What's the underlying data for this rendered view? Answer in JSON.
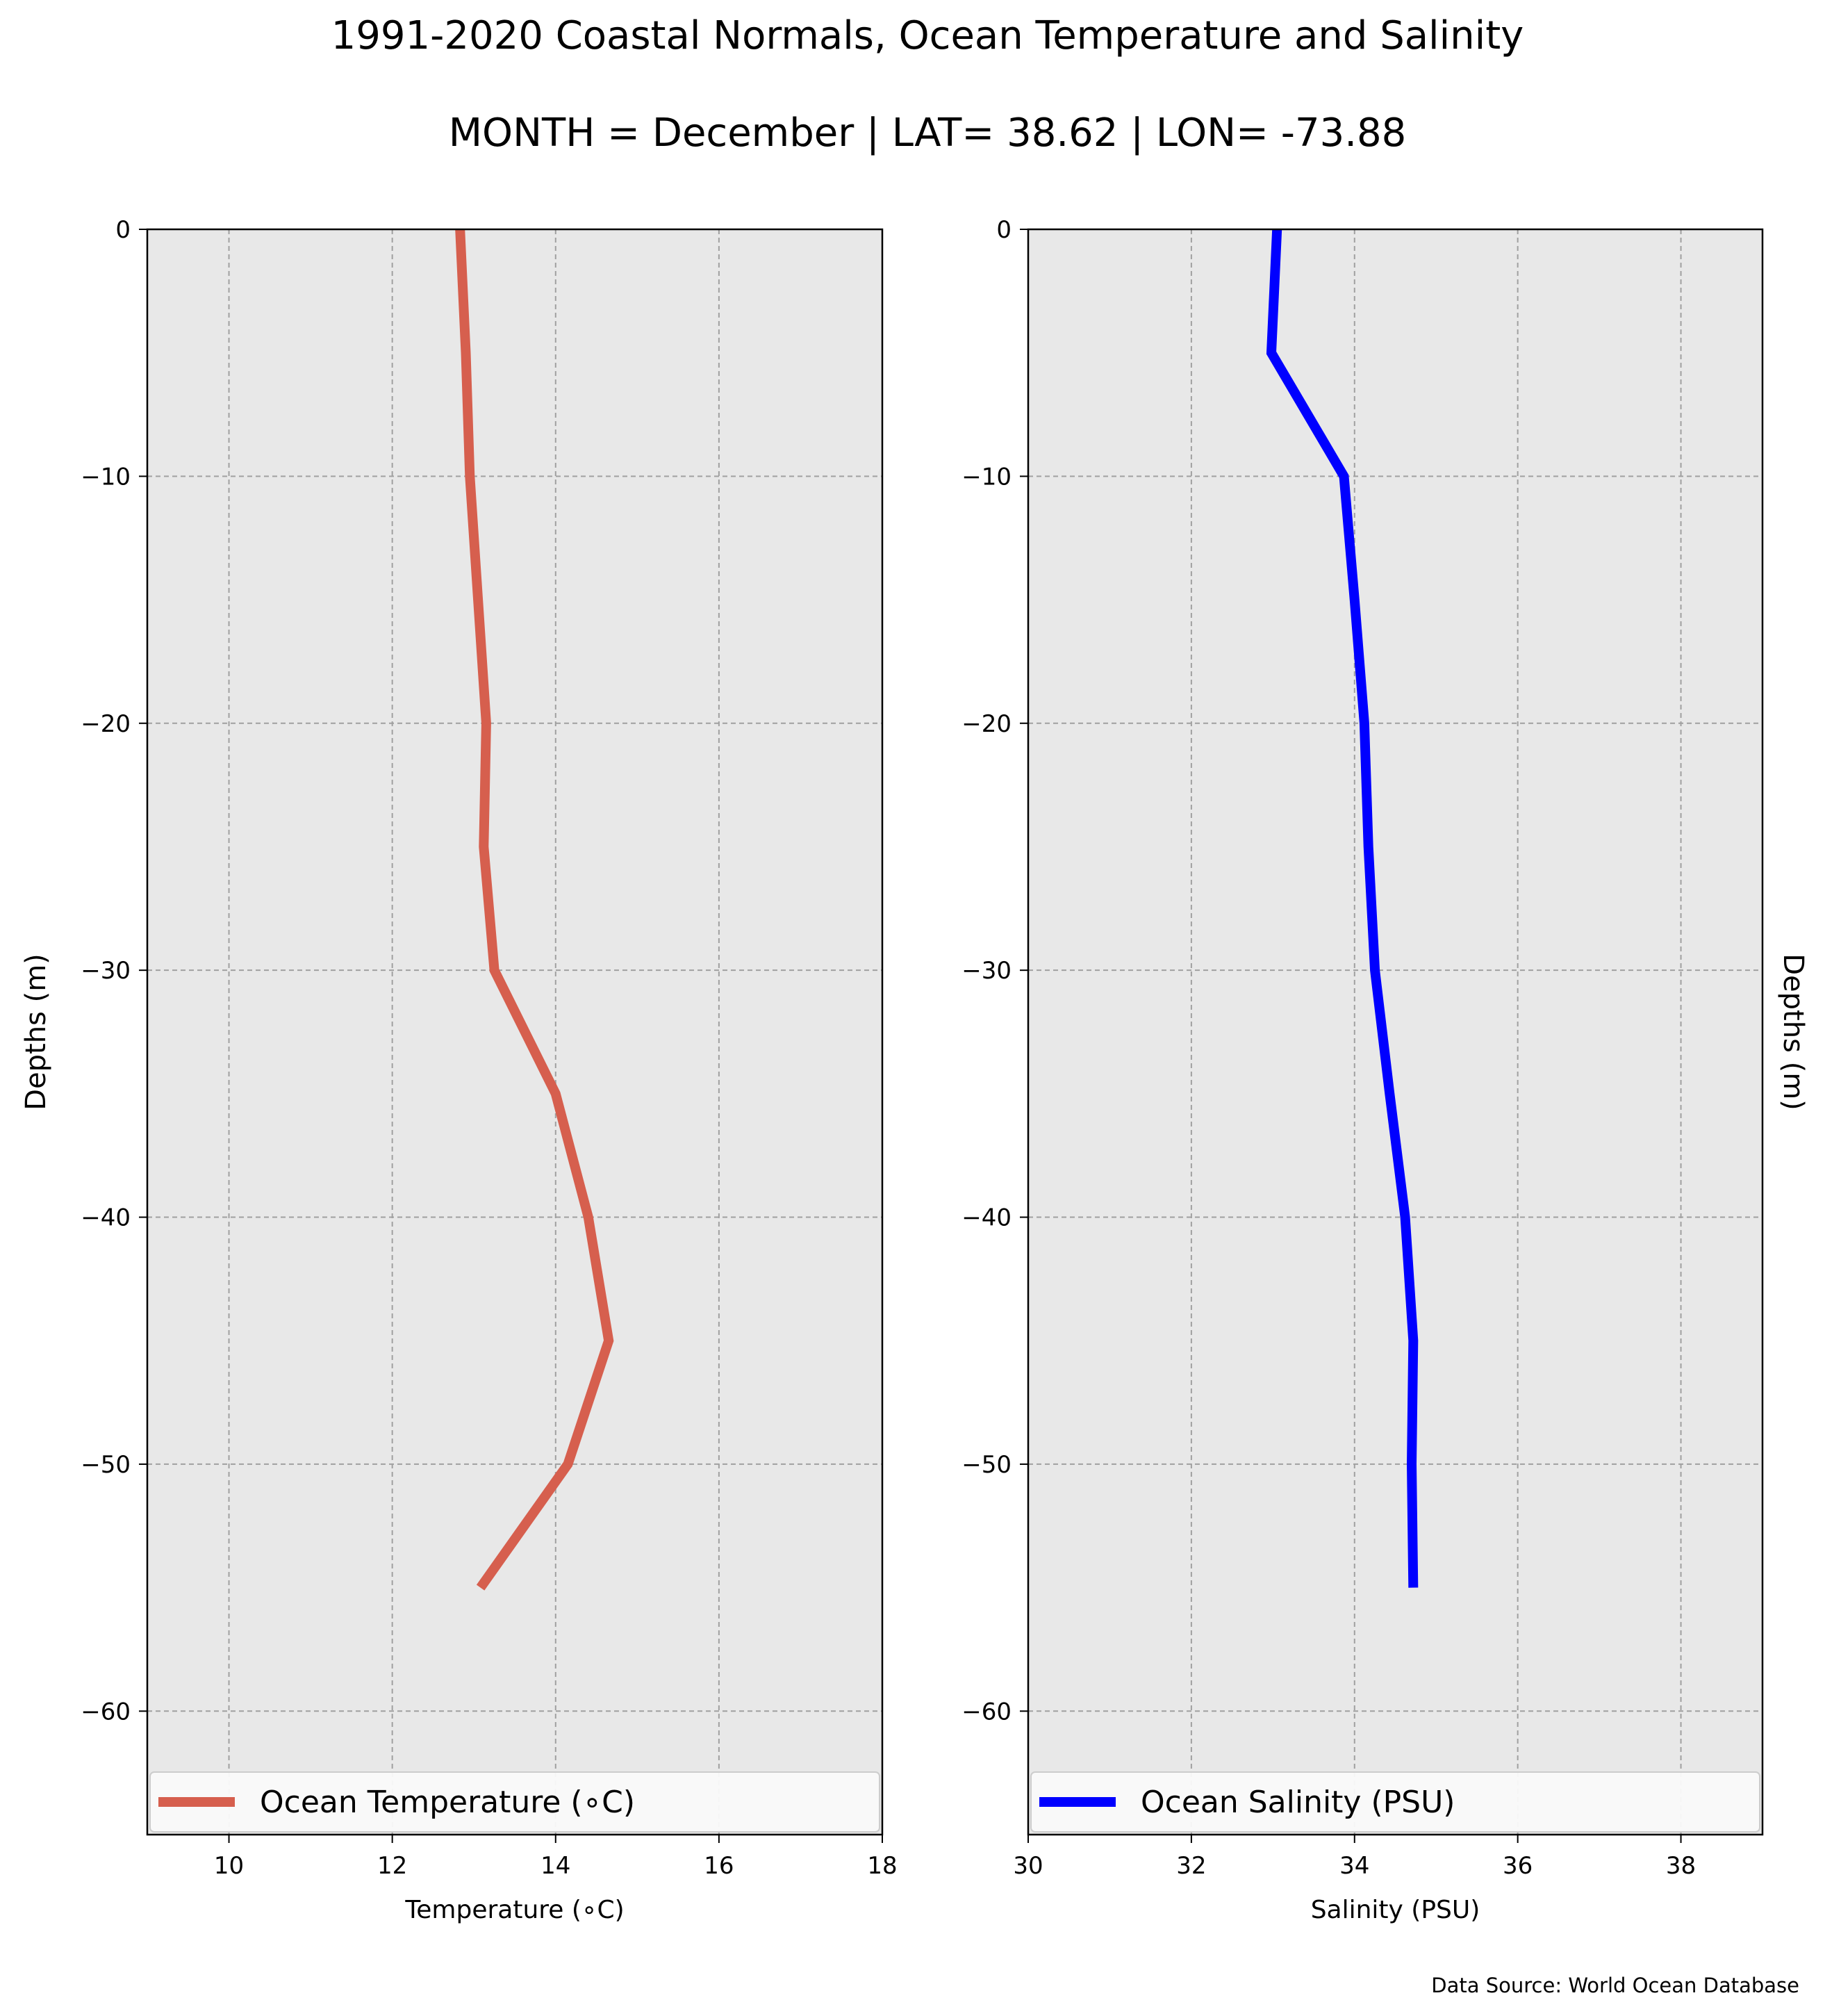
{
  "title": "1991-2020 Coastal Normals, Ocean Temperature and Salinity",
  "subtitle": "MONTH = December | LAT= 38.62 | LON= -73.88",
  "source_note": "Data Source: World Ocean Database",
  "colors": {
    "panel_bg": "#e8e8e8",
    "temperature": "#d65f4e",
    "salinity": "#0000ff",
    "grid": "#a0a0a0"
  },
  "chart_data": [
    {
      "type": "line",
      "xlabel": "Temperature (∘C)",
      "ylabel": "Depths (m)",
      "xlim": [
        9,
        18
      ],
      "ylim": [
        -65,
        0
      ],
      "xticks": [
        10,
        12,
        14,
        16,
        18
      ],
      "yticks": [
        0,
        -10,
        -20,
        -30,
        -40,
        -50,
        -60
      ],
      "grid": true,
      "legend_position": "bottom",
      "series": [
        {
          "name": "Ocean Temperature (∘C)",
          "x": [
            12.83,
            12.9,
            12.95,
            13.05,
            13.15,
            13.12,
            13.25,
            14.0,
            14.4,
            14.65,
            14.15,
            13.08
          ],
          "y": [
            0,
            -5,
            -10,
            -15,
            -20,
            -25,
            -30,
            -35,
            -40,
            -45,
            -50,
            -55
          ]
        }
      ]
    },
    {
      "type": "line",
      "xlabel": "Salinity (PSU)",
      "ylabel": "Depths (m)",
      "xlim": [
        30,
        39
      ],
      "ylim": [
        -65,
        0
      ],
      "xticks": [
        30,
        32,
        34,
        36,
        38
      ],
      "yticks": [
        0,
        -10,
        -20,
        -30,
        -40,
        -50,
        -60
      ],
      "grid": true,
      "legend_position": "bottom",
      "series": [
        {
          "name": "Ocean Salinity (PSU)",
          "x": [
            33.05,
            32.98,
            33.87,
            34.0,
            34.12,
            34.17,
            34.25,
            34.43,
            34.62,
            34.72,
            34.7,
            34.72
          ],
          "y": [
            0,
            -5,
            -10,
            -15,
            -20,
            -25,
            -30,
            -35,
            -40,
            -45,
            -50,
            -55
          ]
        }
      ]
    }
  ]
}
